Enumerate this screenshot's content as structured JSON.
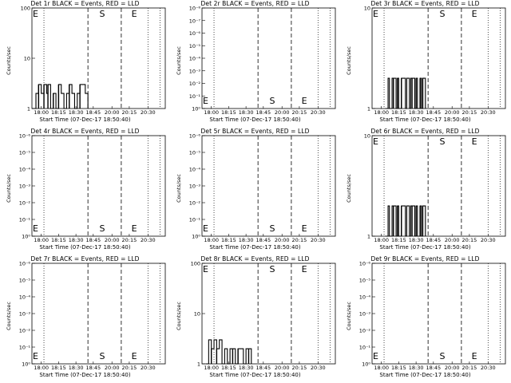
{
  "chart_data": [
    {
      "type": "line",
      "title": "Det 1r BLACK = Events, RED = LLD",
      "xlabel": "Start Time (07-Dec-17 18:50:40)",
      "ylabel": "Counts/sec",
      "yscale": "log",
      "ylim": [
        1,
        100
      ],
      "ytick_labels": [
        "1",
        "10",
        "100"
      ],
      "xtick_labels": [
        "18:00",
        "18:15",
        "18:30",
        "18:45",
        "20:00",
        "20:15",
        "20:30"
      ],
      "grid": false,
      "markers": [
        "E",
        "S",
        "E"
      ],
      "series": [
        {
          "color": "#000000",
          "x": [
            0.0,
            0.03,
            0.05,
            0.07,
            0.09,
            0.11,
            0.12,
            0.14,
            0.16,
            0.18,
            0.2,
            0.22,
            0.24,
            0.26,
            0.28,
            0.3,
            0.32,
            0.34,
            0.36,
            0.4
          ],
          "y": [
            1.0,
            2.0,
            3.0,
            2.0,
            3.0,
            2.0,
            3.0,
            1.0,
            2.0,
            1.0,
            3.0,
            2.0,
            1.0,
            2.0,
            3.0,
            2.0,
            1.0,
            2.0,
            3.0,
            2.0
          ]
        }
      ]
    },
    {
      "type": "line",
      "title": "Det 2r BLACK = Events, RED = LLD",
      "xlabel": "Start Time (07-Dec-17 18:50:40)",
      "ylabel": "Counts/sec",
      "yscale": "log",
      "ylim": [
        1,
        1e-08
      ],
      "ytick_labels": [
        "10⁰",
        "10⁻¹",
        "10⁻²",
        "10⁻³",
        "10⁻⁴",
        "10⁻⁵",
        "10⁻⁶",
        "10⁻⁷",
        "10⁻⁸"
      ],
      "xtick_labels": [
        "18:00",
        "18:15",
        "18:30",
        "18:45",
        "20:00",
        "20:15",
        "20:30"
      ],
      "grid": false,
      "markers": [
        "E",
        "S",
        "E"
      ],
      "series": []
    },
    {
      "type": "line",
      "title": "Det 3r BLACK = Events, RED = LLD",
      "xlabel": "Start Time (07-Dec-17 18:50:40)",
      "ylabel": "Counts/sec",
      "yscale": "log",
      "ylim": [
        1,
        10
      ],
      "ytick_labels": [
        "1",
        "10"
      ],
      "xtick_labels": [
        "18:00",
        "18:15",
        "18:30",
        "18:45",
        "20:00",
        "20:15",
        "20:30"
      ],
      "grid": false,
      "markers": [
        "E",
        "S",
        "E"
      ],
      "series": [
        {
          "color": "#000000",
          "x": [
            0.1,
            0.12,
            0.13,
            0.15,
            0.16,
            0.18,
            0.19,
            0.2,
            0.22,
            0.23,
            0.25,
            0.26,
            0.28,
            0.29,
            0.3,
            0.32,
            0.33,
            0.34,
            0.36,
            0.37,
            0.38
          ],
          "y": [
            1,
            2,
            1,
            2,
            2,
            1,
            2,
            1,
            2,
            2,
            1,
            2,
            1,
            2,
            2,
            1,
            2,
            1,
            2,
            1,
            2
          ]
        }
      ]
    },
    {
      "type": "line",
      "title": "Det 4r BLACK = Events, RED = LLD",
      "xlabel": "Start Time (07-Dec-17 18:50:40)",
      "ylabel": "Counts/sec",
      "yscale": "log",
      "ylim": [
        1,
        1e-06
      ],
      "ytick_labels": [
        "10⁰",
        "10⁻¹",
        "10⁻²",
        "10⁻³",
        "10⁻⁴",
        "10⁻⁵",
        "10⁻⁶"
      ],
      "xtick_labels": [
        "18:00",
        "18:15",
        "18:30",
        "18:45",
        "20:00",
        "20:15",
        "20:30"
      ],
      "grid": false,
      "markers": [
        "E",
        "S",
        "E"
      ],
      "series": []
    },
    {
      "type": "line",
      "title": "Det 5r BLACK = Events, RED = LLD",
      "xlabel": "Start Time (07-Dec-17 18:50:40)",
      "ylabel": "Counts/sec",
      "yscale": "log",
      "ylim": [
        1,
        1e-06
      ],
      "ytick_labels": [
        "10⁰",
        "10⁻¹",
        "10⁻²",
        "10⁻³",
        "10⁻⁴",
        "10⁻⁵",
        "10⁻⁶"
      ],
      "xtick_labels": [
        "18:00",
        "18:15",
        "18:30",
        "18:45",
        "20:00",
        "20:15",
        "20:30"
      ],
      "grid": false,
      "markers": [
        "E",
        "S",
        "E"
      ],
      "series": []
    },
    {
      "type": "line",
      "title": "Det 6r BLACK = Events, RED = LLD",
      "xlabel": "Start Time (07-Dec-17 18:50:40)",
      "ylabel": "Counts/sec",
      "yscale": "log",
      "ylim": [
        1,
        10
      ],
      "ytick_labels": [
        "1",
        "10"
      ],
      "xtick_labels": [
        "18:00",
        "18:15",
        "18:30",
        "18:45",
        "20:00",
        "20:15",
        "20:30"
      ],
      "grid": false,
      "markers": [
        "E",
        "S",
        "E"
      ],
      "series": [
        {
          "color": "#000000",
          "x": [
            0.1,
            0.12,
            0.13,
            0.15,
            0.16,
            0.18,
            0.19,
            0.2,
            0.22,
            0.23,
            0.25,
            0.26,
            0.28,
            0.29,
            0.3,
            0.32,
            0.33,
            0.34,
            0.36,
            0.37,
            0.38
          ],
          "y": [
            1,
            2,
            1,
            2,
            2,
            1,
            2,
            1,
            2,
            2,
            1,
            2,
            1,
            2,
            2,
            1,
            2,
            1,
            2,
            1,
            2
          ]
        }
      ]
    },
    {
      "type": "line",
      "title": "Det 7r BLACK = Events, RED = LLD",
      "xlabel": "Start Time (07-Dec-17 18:50:40)",
      "ylabel": "Counts/sec",
      "yscale": "log",
      "ylim": [
        1,
        1e-06
      ],
      "ytick_labels": [
        "10⁰",
        "10⁻¹",
        "10⁻²",
        "10⁻³",
        "10⁻⁴",
        "10⁻⁵",
        "10⁻⁶"
      ],
      "xtick_labels": [
        "18:00",
        "18:15",
        "18:30",
        "18:45",
        "20:00",
        "20:15",
        "20:30"
      ],
      "grid": false,
      "markers": [
        "E",
        "S",
        "E"
      ],
      "series": []
    },
    {
      "type": "line",
      "title": "Det 8r BLACK = Events, RED = LLD",
      "xlabel": "Start Time (07-Dec-17 18:50:40)",
      "ylabel": "Counts/sec",
      "yscale": "log",
      "ylim": [
        1,
        100
      ],
      "ytick_labels": [
        "1",
        "10",
        "100"
      ],
      "xtick_labels": [
        "18:00",
        "18:15",
        "18:30",
        "18:45",
        "20:00",
        "20:15",
        "20:30"
      ],
      "grid": false,
      "markers": [
        "E",
        "S",
        "E"
      ],
      "series": [
        {
          "color": "#000000",
          "x": [
            0.03,
            0.05,
            0.07,
            0.09,
            0.11,
            0.13,
            0.15,
            0.17,
            0.19,
            0.21,
            0.23,
            0.25,
            0.27,
            0.29,
            0.31,
            0.33,
            0.35
          ],
          "y": [
            1,
            3,
            2,
            3,
            2,
            3,
            1,
            2,
            1,
            2,
            2,
            1,
            2,
            2,
            1,
            2,
            2
          ]
        }
      ]
    },
    {
      "type": "line",
      "title": "Det 9r BLACK = Events, RED = LLD",
      "xlabel": "Start Time (07-Dec-17 18:50:40)",
      "ylabel": "Counts/sec",
      "yscale": "log",
      "ylim": [
        1,
        1e-06
      ],
      "ytick_labels": [
        "10⁰",
        "10⁻¹",
        "10⁻²",
        "10⁻³",
        "10⁻⁴",
        "10⁻⁵",
        "10⁻⁶"
      ],
      "xtick_labels": [
        "18:00",
        "18:15",
        "18:30",
        "18:45",
        "20:00",
        "20:15",
        "20:30"
      ],
      "grid": false,
      "markers": [
        "E",
        "S",
        "E"
      ],
      "series": []
    }
  ]
}
